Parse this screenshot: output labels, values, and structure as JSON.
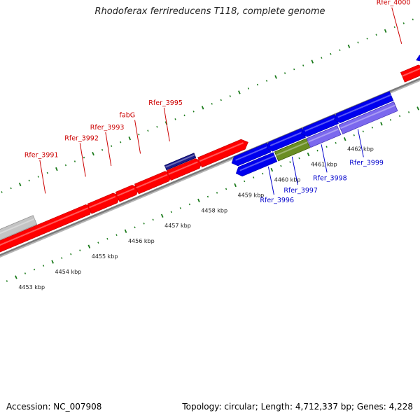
{
  "title": "Rhodoferax ferrireducens T118, complete genome",
  "footer": {
    "accession": "Accession: NC_007908",
    "summary": "Topology: circular; Length: 4,712,337 bp; Genes: 4,228"
  },
  "colors": {
    "backbone": "#7a7a7a",
    "tick": "#1a7a1a",
    "forward_gene": "#ff0000",
    "reverse_gene": "#0000ee",
    "rna": "#1c1c8c",
    "pseudo": "#c4c4c4",
    "highlight_green": "#6b8e23",
    "highlight_purple": "#7b68ee",
    "forward_label": "#cc0000",
    "reverse_label": "#0000cc"
  },
  "scale": {
    "unit": "kbp",
    "labels": [
      {
        "kbp": 4453,
        "text": "4453 kbp"
      },
      {
        "kbp": 4454,
        "text": "4454 kbp"
      },
      {
        "kbp": 4455,
        "text": "4455 kbp"
      },
      {
        "kbp": 4456,
        "text": "4456 kbp"
      },
      {
        "kbp": 4457,
        "text": "4457 kbp"
      },
      {
        "kbp": 4458,
        "text": "4458 kbp"
      },
      {
        "kbp": 4459,
        "text": "4459 kbp"
      },
      {
        "kbp": 4460,
        "text": "4460 kbp"
      },
      {
        "kbp": 4461,
        "text": "4461 kbp"
      },
      {
        "kbp": 4462,
        "text": "4462 kbp"
      }
    ]
  },
  "genes": {
    "forward": [
      {
        "label": "Rfer_3990",
        "type": "pseudo",
        "start": 4451.4,
        "end": 4454.0
      },
      {
        "label": "",
        "type": "cds",
        "start": 4451.4,
        "end": 4451.75
      },
      {
        "label": "Rfer_3991",
        "type": "cds",
        "start": 4452.1,
        "end": 4455.35
      },
      {
        "label": "Rfer_3992",
        "type": "cds",
        "start": 4455.38,
        "end": 4456.1
      },
      {
        "label": "Rfer_3993",
        "type": "cds",
        "start": 4456.15,
        "end": 4456.62
      },
      {
        "label": "fabG",
        "type": "cds",
        "start": 4456.67,
        "end": 4457.52
      },
      {
        "label": "",
        "type": "rna",
        "start": 4457.55,
        "end": 4458.35
      },
      {
        "label": "Rfer_3995",
        "type": "cds",
        "start": 4457.55,
        "end": 4458.35
      },
      {
        "label": "",
        "type": "cds",
        "start": 4458.4,
        "end": 4459.6
      },
      {
        "label": "",
        "type": "rna",
        "start": 4464.55,
        "end": 4465.6
      },
      {
        "label": "",
        "type": "reverse_upper",
        "start": 4464.55,
        "end": 4465.6
      },
      {
        "label": "Rfer_4000",
        "type": "cds",
        "start": 4463.95,
        "end": 4464.45
      },
      {
        "label": "",
        "type": "cds",
        "start": 4464.55,
        "end": 4465.6
      }
    ],
    "reverse": [
      {
        "label": "",
        "type": "cds_upper",
        "start": 4459.25,
        "end": 4460.15
      },
      {
        "label": "",
        "type": "cds_upper",
        "start": 4460.2,
        "end": 4461.1
      },
      {
        "label": "",
        "type": "cds_upper",
        "start": 4461.15,
        "end": 4462.0
      },
      {
        "label": "",
        "type": "cds_upper",
        "start": 4462.05,
        "end": 4463.5
      },
      {
        "label": "Rfer_3996",
        "type": "cds",
        "start": 4459.25,
        "end": 4460.2
      },
      {
        "label": "Rfer_3997",
        "type": "green",
        "start": 4460.24,
        "end": 4461.1
      },
      {
        "label": "Rfer_3998",
        "type": "purple",
        "start": 4461.12,
        "end": 4461.95
      },
      {
        "label": "",
        "type": "rna",
        "start": 4462.0,
        "end": 4463.5
      },
      {
        "label": "Rfer_3999",
        "type": "purple",
        "start": 4462.0,
        "end": 4463.5
      }
    ]
  },
  "gene_labels": {
    "forward": [
      {
        "text": "Rfer_3990",
        "anchor_kbp": 4452.9
      },
      {
        "text": "Rfer_3991",
        "anchor_kbp": 4454.5
      },
      {
        "text": "Rfer_3992",
        "anchor_kbp": 4455.6
      },
      {
        "text": "Rfer_3993",
        "anchor_kbp": 4456.3
      },
      {
        "text": "fabG",
        "anchor_kbp": 4457.1
      },
      {
        "text": "Rfer_3995",
        "anchor_kbp": 4457.9
      },
      {
        "text": "Rfer_4000",
        "anchor_kbp": 4464.25
      }
    ],
    "reverse": [
      {
        "text": "Rfer_3996",
        "anchor_kbp": 4459.95
      },
      {
        "text": "Rfer_3997",
        "anchor_kbp": 4460.6
      },
      {
        "text": "Rfer_3998",
        "anchor_kbp": 4461.4
      },
      {
        "text": "Rfer_3999",
        "anchor_kbp": 4462.4
      }
    ]
  }
}
